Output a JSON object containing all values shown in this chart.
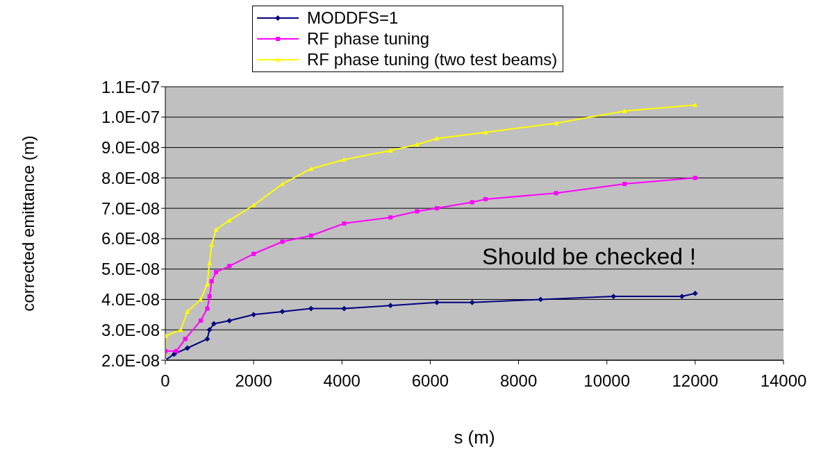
{
  "chart_data": {
    "type": "line",
    "xlabel": "s (m)",
    "ylabel": "corrected emittance (m)",
    "xlim": [
      0,
      14000
    ],
    "xticks": [
      0,
      2000,
      4000,
      6000,
      8000,
      10000,
      12000,
      14000
    ],
    "ylim": [
      2e-08,
      1.1e-07
    ],
    "yticks": [
      {
        "value": 2e-08,
        "label": "2.0E-08"
      },
      {
        "value": 3e-08,
        "label": "3.0E-08"
      },
      {
        "value": 4e-08,
        "label": "4.0E-08"
      },
      {
        "value": 5e-08,
        "label": "5.0E-08"
      },
      {
        "value": 6e-08,
        "label": "6.0E-08"
      },
      {
        "value": 7e-08,
        "label": "7.0E-08"
      },
      {
        "value": 8e-08,
        "label": "8.0E-08"
      },
      {
        "value": 9e-08,
        "label": "9.0E-08"
      },
      {
        "value": 1e-07,
        "label": "1.0E-07"
      },
      {
        "value": 1.1e-07,
        "label": "1.1E-07"
      }
    ],
    "grid": "y",
    "legend": "top",
    "line_style": "solid",
    "annotations": [
      "Should be checked !"
    ],
    "series": [
      {
        "name": "MODDFS=1",
        "color": "#000080",
        "marker": "diamond",
        "x": [
          0,
          200,
          500,
          950,
          1000,
          1100,
          1450,
          2000,
          2650,
          3300,
          4050,
          5100,
          6150,
          6950,
          8500,
          10150,
          11700,
          12000
        ],
        "values": [
          2e-08,
          2.2e-08,
          2.4e-08,
          2.7e-08,
          3e-08,
          3.2e-08,
          3.3e-08,
          3.5e-08,
          3.6e-08,
          3.7e-08,
          3.7e-08,
          3.8e-08,
          3.9e-08,
          3.9e-08,
          4e-08,
          4.1e-08,
          4.1e-08,
          4.2e-08
        ]
      },
      {
        "name": "RF phase tuning",
        "color": "#ff00ff",
        "marker": "square",
        "x": [
          0,
          250,
          450,
          800,
          950,
          1000,
          1050,
          1150,
          1450,
          2000,
          2650,
          3300,
          4050,
          5100,
          5700,
          6150,
          6950,
          7250,
          8850,
          10400,
          12000
        ],
        "values": [
          2.3e-08,
          2.3e-08,
          2.7e-08,
          3.3e-08,
          3.7e-08,
          4.1e-08,
          4.6e-08,
          4.9e-08,
          5.1e-08,
          5.5e-08,
          5.9e-08,
          6.1e-08,
          6.5e-08,
          6.7e-08,
          6.9e-08,
          7e-08,
          7.2e-08,
          7.3e-08,
          7.5e-08,
          7.8e-08,
          8e-08
        ]
      },
      {
        "name": "RF phase tuning (two test beams)",
        "color": "#ffff00",
        "marker": "triangle",
        "x": [
          0,
          10,
          350,
          500,
          800,
          950,
          1000,
          1050,
          1150,
          1450,
          2000,
          2650,
          3300,
          4050,
          5100,
          5700,
          6150,
          7250,
          8850,
          10400,
          12000
        ],
        "values": [
          2e-08,
          2.8e-08,
          3e-08,
          3.6e-08,
          4e-08,
          4.5e-08,
          5.2e-08,
          5.8e-08,
          6.3e-08,
          6.6e-08,
          7.1e-08,
          7.8e-08,
          8.3e-08,
          8.6e-08,
          8.9e-08,
          9.1e-08,
          9.3e-08,
          9.5e-08,
          9.8e-08,
          1.02e-07,
          1.04e-07
        ]
      }
    ]
  }
}
